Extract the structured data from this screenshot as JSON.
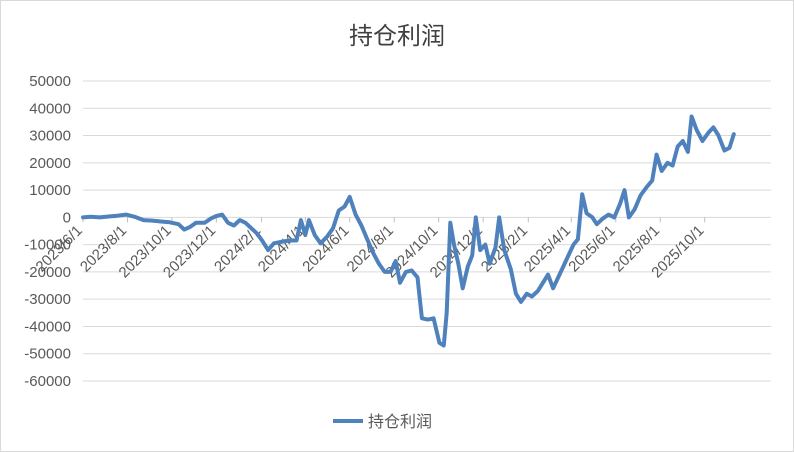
{
  "chart_data": {
    "type": "line",
    "title": "持仓利润",
    "xlabel": "",
    "ylabel": "",
    "ylim": [
      -60000,
      50000
    ],
    "yticks": [
      50000,
      40000,
      30000,
      20000,
      10000,
      0,
      -10000,
      -20000,
      -30000,
      -40000,
      -50000,
      -60000
    ],
    "ytick_labels": [
      "50000",
      "40000",
      "30000",
      "20000",
      "10000",
      "0",
      "-10000",
      "-20000",
      "-30000",
      "-40000",
      "-50000",
      "-60000"
    ],
    "xlim": [
      "2023-06-01",
      "2025-12-31"
    ],
    "xtick_labels": [
      {
        "date": "2023-06-01",
        "label": "2023/6/1"
      },
      {
        "date": "2023-08-01",
        "label": "2023/8/1"
      },
      {
        "date": "2023-10-01",
        "label": "2023/10/1"
      },
      {
        "date": "2023-12-01",
        "label": "2023/12/1"
      },
      {
        "date": "2024-02-01",
        "label": "2024/2/1"
      },
      {
        "date": "2024-04-01",
        "label": "2024/4/1"
      },
      {
        "date": "2024-06-01",
        "label": "2024/6/1"
      },
      {
        "date": "2024-08-01",
        "label": "2024/8/1"
      },
      {
        "date": "2024-10-01",
        "label": "2024/10/1"
      },
      {
        "date": "2024-12-01",
        "label": "2024/12/1"
      },
      {
        "date": "2025-02-01",
        "label": "2025/2/1"
      },
      {
        "date": "2025-04-01",
        "label": "2025/4/1"
      },
      {
        "date": "2025-06-01",
        "label": "2025/6/1"
      },
      {
        "date": "2025-08-01",
        "label": "2025/8/1"
      },
      {
        "date": "2025-10-01",
        "label": "2025/10/1"
      }
    ],
    "legend_position": "bottom",
    "grid": "horizontal",
    "series": [
      {
        "name": "持仓利润",
        "color": "#4f81bd",
        "points": [
          [
            "2023-06-01",
            0
          ],
          [
            "2023-06-12",
            200
          ],
          [
            "2023-06-24",
            0
          ],
          [
            "2023-07-06",
            300
          ],
          [
            "2023-07-18",
            600
          ],
          [
            "2023-07-30",
            1000
          ],
          [
            "2023-08-11",
            200
          ],
          [
            "2023-08-23",
            -1000
          ],
          [
            "2023-09-04",
            -1200
          ],
          [
            "2023-09-16",
            -1500
          ],
          [
            "2023-09-28",
            -1800
          ],
          [
            "2023-10-10",
            -2500
          ],
          [
            "2023-10-18",
            -4500
          ],
          [
            "2023-10-26",
            -3500
          ],
          [
            "2023-11-03",
            -2000
          ],
          [
            "2023-11-15",
            -2000
          ],
          [
            "2023-11-23",
            -500
          ],
          [
            "2023-12-01",
            500
          ],
          [
            "2023-12-09",
            1000
          ],
          [
            "2023-12-17",
            -2000
          ],
          [
            "2023-12-25",
            -3000
          ],
          [
            "2024-01-02",
            -1000
          ],
          [
            "2024-01-10",
            -2000
          ],
          [
            "2024-01-18",
            -4000
          ],
          [
            "2024-01-26",
            -6000
          ],
          [
            "2024-02-03",
            -9000
          ],
          [
            "2024-02-10",
            -12000
          ],
          [
            "2024-02-18",
            -9500
          ],
          [
            "2024-02-28",
            -9000
          ],
          [
            "2024-03-10",
            -8500
          ],
          [
            "2024-03-20",
            -8500
          ],
          [
            "2024-03-26",
            -1000
          ],
          [
            "2024-04-01",
            -6500
          ],
          [
            "2024-04-06",
            -1000
          ],
          [
            "2024-04-14",
            -6500
          ],
          [
            "2024-04-22",
            -9500
          ],
          [
            "2024-05-01",
            -7000
          ],
          [
            "2024-05-09",
            -4000
          ],
          [
            "2024-05-17",
            2500
          ],
          [
            "2024-05-25",
            4000
          ],
          [
            "2024-06-01",
            7500
          ],
          [
            "2024-06-09",
            1000
          ],
          [
            "2024-06-17",
            -3000
          ],
          [
            "2024-06-25",
            -8000
          ],
          [
            "2024-07-03",
            -13000
          ],
          [
            "2024-07-11",
            -17000
          ],
          [
            "2024-07-19",
            -20000
          ],
          [
            "2024-07-27",
            -20000
          ],
          [
            "2024-08-03",
            -16000
          ],
          [
            "2024-08-09",
            -24000
          ],
          [
            "2024-08-17",
            -20000
          ],
          [
            "2024-08-25",
            -19500
          ],
          [
            "2024-09-02",
            -22000
          ],
          [
            "2024-09-08",
            -37000
          ],
          [
            "2024-09-16",
            -37500
          ],
          [
            "2024-09-24",
            -37000
          ],
          [
            "2024-10-02",
            -46000
          ],
          [
            "2024-10-08",
            -47000
          ],
          [
            "2024-10-12",
            -35000
          ],
          [
            "2024-10-17",
            -2000
          ],
          [
            "2024-10-22",
            -10000
          ],
          [
            "2024-10-28",
            -17000
          ],
          [
            "2024-11-03",
            -26000
          ],
          [
            "2024-11-10",
            -18000
          ],
          [
            "2024-11-16",
            -14000
          ],
          [
            "2024-11-21",
            0
          ],
          [
            "2024-11-27",
            -12000
          ],
          [
            "2024-12-04",
            -10000
          ],
          [
            "2024-12-10",
            -17000
          ],
          [
            "2024-12-18",
            -11000
          ],
          [
            "2024-12-23",
            0
          ],
          [
            "2024-12-30",
            -12000
          ],
          [
            "2025-01-08",
            -19000
          ],
          [
            "2025-01-15",
            -28000
          ],
          [
            "2025-01-22",
            -31000
          ],
          [
            "2025-01-30",
            -28000
          ],
          [
            "2025-02-06",
            -29000
          ],
          [
            "2025-02-14",
            -27000
          ],
          [
            "2025-02-21",
            -24000
          ],
          [
            "2025-02-28",
            -21000
          ],
          [
            "2025-03-07",
            -26000
          ],
          [
            "2025-03-14",
            -22000
          ],
          [
            "2025-03-21",
            -18000
          ],
          [
            "2025-03-28",
            -14000
          ],
          [
            "2025-04-04",
            -10000
          ],
          [
            "2025-04-10",
            -8000
          ],
          [
            "2025-04-16",
            8500
          ],
          [
            "2025-04-22",
            1500
          ],
          [
            "2025-04-30",
            0
          ],
          [
            "2025-05-06",
            -2500
          ],
          [
            "2025-05-14",
            -500
          ],
          [
            "2025-05-22",
            1000
          ],
          [
            "2025-05-30",
            0
          ],
          [
            "2025-06-07",
            5000
          ],
          [
            "2025-06-13",
            10000
          ],
          [
            "2025-06-19",
            0
          ],
          [
            "2025-06-27",
            3000
          ],
          [
            "2025-07-05",
            8000
          ],
          [
            "2025-07-13",
            11000
          ],
          [
            "2025-07-21",
            13500
          ],
          [
            "2025-07-27",
            23000
          ],
          [
            "2025-08-03",
            17000
          ],
          [
            "2025-08-11",
            20000
          ],
          [
            "2025-08-18",
            19000
          ],
          [
            "2025-08-25",
            26000
          ],
          [
            "2025-09-01",
            28000
          ],
          [
            "2025-09-08",
            24000
          ],
          [
            "2025-09-13",
            37000
          ],
          [
            "2025-09-20",
            32000
          ],
          [
            "2025-09-28",
            28000
          ],
          [
            "2025-10-06",
            31000
          ],
          [
            "2025-10-13",
            33000
          ],
          [
            "2025-10-20",
            30000
          ],
          [
            "2025-10-28",
            24500
          ],
          [
            "2025-11-04",
            25500
          ],
          [
            "2025-11-10",
            30500
          ]
        ]
      }
    ]
  }
}
